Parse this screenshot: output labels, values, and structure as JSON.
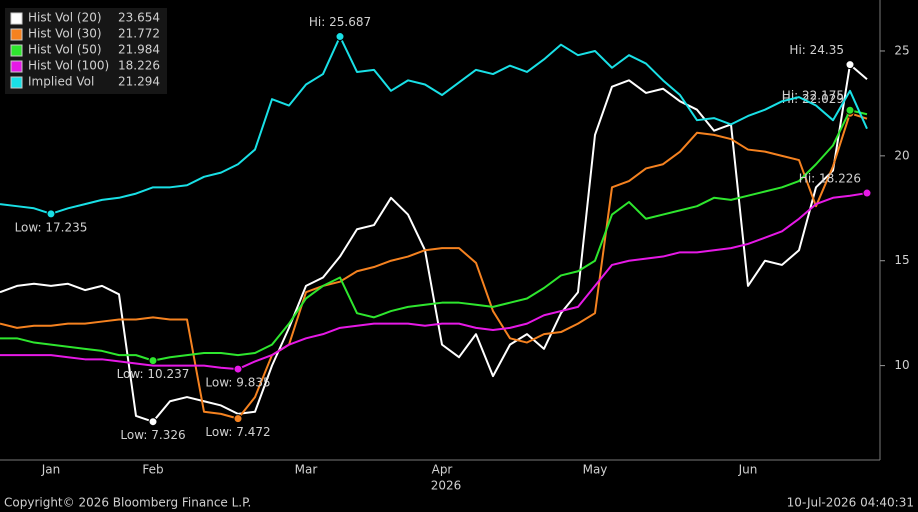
{
  "chart_data": {
    "type": "line",
    "year_label": "2026",
    "footer_left": "Copyright© 2026 Bloomberg Finance L.P.",
    "footer_right": "10-Jul-2026 04:40:31",
    "categories": [
      null,
      null,
      null,
      "Jan",
      null,
      null,
      null,
      null,
      null,
      "Feb",
      null,
      null,
      null,
      null,
      null,
      null,
      null,
      null,
      "Mar",
      null,
      null,
      null,
      null,
      null,
      null,
      null,
      "Apr",
      null,
      null,
      null,
      null,
      null,
      null,
      null,
      null,
      "May",
      null,
      null,
      null,
      null,
      null,
      null,
      null,
      null,
      "Jun",
      null,
      null,
      null,
      null,
      null,
      null,
      null
    ],
    "ylim": [
      5.5,
      27.43
    ],
    "yticks": [
      10,
      15,
      20,
      25
    ],
    "series": [
      {
        "name": "Hist Vol (20)",
        "color": "#ffffff",
        "values": [
          13.5,
          13.8,
          13.9,
          13.8,
          13.9,
          13.6,
          13.8,
          13.4,
          7.6,
          7.326,
          8.3,
          8.5,
          8.3,
          8.1,
          7.7,
          7.8,
          10.0,
          11.8,
          13.8,
          14.2,
          15.2,
          16.5,
          16.7,
          18.0,
          17.2,
          15.5,
          11.0,
          10.4,
          11.5,
          9.5,
          11.0,
          11.5,
          10.8,
          12.5,
          13.5,
          21.0,
          23.3,
          23.6,
          23.0,
          23.2,
          22.6,
          22.2,
          21.2,
          21.5,
          13.8,
          15.0,
          14.8,
          15.5,
          18.5,
          19.3,
          24.35,
          23.654
        ],
        "hi": {
          "label": "Hi: 24.35",
          "index": 50
        },
        "low": {
          "label": "Low: 7.326",
          "index": 9
        }
      },
      {
        "name": "Hist Vol (30)",
        "color": "#f58220",
        "values": [
          12.0,
          11.8,
          11.9,
          11.9,
          12.0,
          12.0,
          12.1,
          12.2,
          12.2,
          12.3,
          12.2,
          12.2,
          7.8,
          7.7,
          7.472,
          8.5,
          10.5,
          11.0,
          13.5,
          13.8,
          14.0,
          14.5,
          14.7,
          15.0,
          15.2,
          15.5,
          15.6,
          15.6,
          14.9,
          12.6,
          11.3,
          11.1,
          11.5,
          11.6,
          12.0,
          12.5,
          18.5,
          18.8,
          19.4,
          19.6,
          20.2,
          21.1,
          21.0,
          20.8,
          20.3,
          20.2,
          20.0,
          19.8,
          17.6,
          19.5,
          22.029,
          21.772
        ],
        "hi": {
          "label": "Hi: 22.029",
          "index": 50
        },
        "low": {
          "label": "Low: 7.472",
          "index": 14
        }
      },
      {
        "name": "Hist Vol (50)",
        "color": "#2ee62e",
        "values": [
          11.3,
          11.3,
          11.1,
          11.0,
          10.9,
          10.8,
          10.7,
          10.5,
          10.5,
          10.237,
          10.4,
          10.5,
          10.6,
          10.6,
          10.5,
          10.6,
          11.0,
          12.0,
          13.2,
          13.8,
          14.2,
          12.5,
          12.3,
          12.6,
          12.8,
          12.9,
          13.0,
          13.0,
          12.9,
          12.8,
          13.0,
          13.2,
          13.7,
          14.3,
          14.5,
          15.0,
          17.2,
          17.8,
          17.0,
          17.2,
          17.4,
          17.6,
          18.0,
          17.9,
          18.1,
          18.3,
          18.5,
          18.8,
          19.6,
          20.5,
          22.175,
          21.984
        ],
        "hi": {
          "label": "Hi: 22.175",
          "index": 50
        },
        "low": {
          "label": "Low: 10.237",
          "index": 9
        }
      },
      {
        "name": "Hist Vol (100)",
        "color": "#e619e6",
        "values": [
          10.5,
          10.5,
          10.5,
          10.5,
          10.4,
          10.3,
          10.3,
          10.2,
          10.1,
          10.0,
          10.0,
          10.0,
          10.0,
          9.9,
          9.835,
          10.2,
          10.5,
          11.0,
          11.3,
          11.5,
          11.8,
          11.9,
          12.0,
          12.0,
          12.0,
          11.9,
          12.0,
          12.0,
          11.8,
          11.7,
          11.8,
          12.0,
          12.4,
          12.6,
          12.8,
          13.8,
          14.8,
          15.0,
          15.1,
          15.2,
          15.4,
          15.4,
          15.5,
          15.6,
          15.8,
          16.1,
          16.4,
          17.0,
          17.7,
          18.0,
          18.1,
          18.226
        ],
        "hi": {
          "label": "Hi: 18.226",
          "index": 51
        },
        "low": {
          "label": "Low: 9.835",
          "index": 14
        }
      },
      {
        "name": "Implied Vol",
        "color": "#19e0e6",
        "values": [
          17.7,
          17.6,
          17.5,
          17.235,
          17.5,
          17.7,
          17.9,
          18.0,
          18.2,
          18.5,
          18.5,
          18.6,
          19.0,
          19.2,
          19.6,
          20.3,
          22.7,
          22.4,
          23.4,
          23.9,
          25.687,
          24.0,
          24.1,
          23.1,
          23.6,
          23.4,
          22.9,
          23.5,
          24.1,
          23.9,
          24.3,
          24.0,
          24.6,
          25.3,
          24.8,
          25.0,
          24.2,
          24.8,
          24.4,
          23.6,
          22.9,
          21.7,
          21.8,
          21.5,
          21.9,
          22.2,
          22.6,
          22.8,
          22.4,
          21.7,
          23.1,
          21.294
        ],
        "hi": {
          "label": "Hi: 25.687",
          "index": 20
        },
        "low": {
          "label": "Low: 17.235",
          "index": 3
        }
      }
    ]
  }
}
